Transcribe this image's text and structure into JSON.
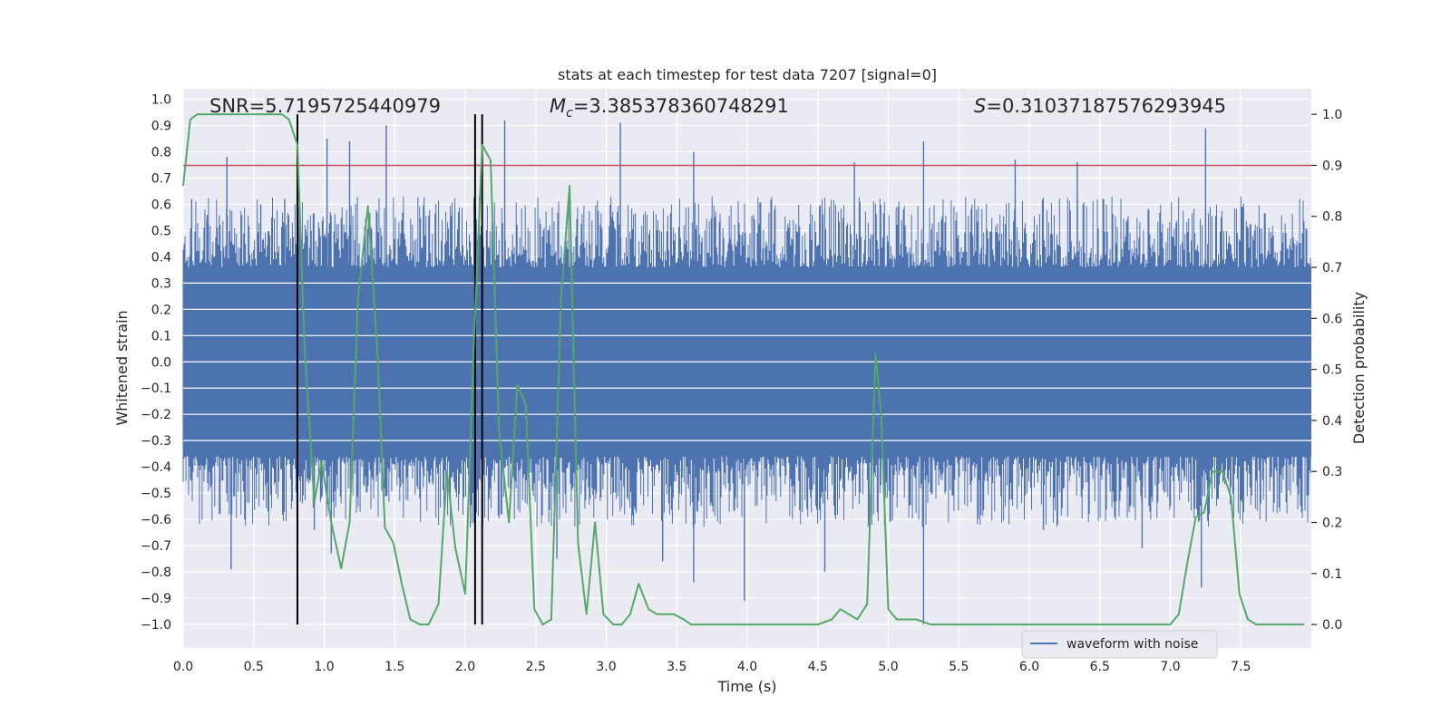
{
  "chart_data": {
    "type": "line",
    "title": "stats at each timestep for test data 7207 [signal=0]",
    "xlabel": "Time (s)",
    "ylabel": "Whitened strain",
    "y2label": "Detection probability",
    "xlim": [
      0.0,
      8.0
    ],
    "ylim": [
      -1.09,
      1.04
    ],
    "y2lim": [
      -0.046,
      1.05
    ],
    "x_ticks": [
      "0.0",
      "0.5",
      "1.0",
      "1.5",
      "2.0",
      "2.5",
      "3.0",
      "3.5",
      "4.0",
      "4.5",
      "5.0",
      "5.5",
      "6.0",
      "6.5",
      "7.0",
      "7.5"
    ],
    "y_ticks": [
      "1.0",
      "0.9",
      "0.8",
      "0.7",
      "0.6",
      "0.5",
      "0.4",
      "0.3",
      "0.2",
      "0.1",
      "0.0",
      "−0.1",
      "−0.2",
      "−0.3",
      "−0.4",
      "−0.5",
      "−0.6",
      "−0.7",
      "−0.8",
      "−0.9",
      "−1.0"
    ],
    "y2_ticks": [
      "1.0",
      "0.9",
      "0.8",
      "0.7",
      "0.6",
      "0.5",
      "0.4",
      "0.3",
      "0.2",
      "0.1",
      "0.0"
    ],
    "grid": true,
    "legend_position": "lower-right",
    "annotations": {
      "snr": "SNR=5.7195725440979",
      "mc_prefix": "M",
      "mc_sub": "c",
      "mc_value": "=3.385378360748291",
      "s_prefix": "S",
      "s_value": "=0.31037187576293945"
    },
    "threshold": {
      "axis": "y2",
      "value": 0.9,
      "color": "#c44e52"
    },
    "vertical_markers": {
      "x": [
        0.81,
        2.07,
        2.12
      ],
      "color": "#000000"
    },
    "series": [
      {
        "name": "waveform with noise",
        "axis": "y",
        "color": "#4c72b0",
        "amplitude_envelope": {
          "core_band": [
            -0.36,
            0.36
          ],
          "typical_peak": 0.55,
          "max_peak": 0.92,
          "min_trough": -1.0
        },
        "spikes": [
          [
            0.06,
            0.62
          ],
          [
            0.17,
            0.56
          ],
          [
            0.31,
            0.78
          ],
          [
            0.55,
            0.6
          ],
          [
            0.72,
            0.62
          ],
          [
            1.02,
            0.85
          ],
          [
            1.18,
            0.84
          ],
          [
            1.44,
            0.9
          ],
          [
            2.28,
            0.92
          ],
          [
            3.1,
            0.91
          ],
          [
            3.62,
            0.8
          ],
          [
            4.76,
            0.76
          ],
          [
            5.25,
            0.84
          ],
          [
            5.9,
            0.77
          ],
          [
            6.34,
            0.76
          ],
          [
            7.25,
            0.89
          ],
          [
            0.34,
            -0.79
          ],
          [
            1.05,
            -0.73
          ],
          [
            3.4,
            -0.76
          ],
          [
            3.62,
            -0.84
          ],
          [
            3.98,
            -0.91
          ],
          [
            4.55,
            -0.8
          ],
          [
            5.25,
            -1.0
          ],
          [
            7.22,
            -0.86
          ],
          [
            0.93,
            -0.64
          ],
          [
            2.65,
            -0.75
          ],
          [
            6.1,
            -0.64
          ],
          [
            6.8,
            -0.71
          ]
        ]
      },
      {
        "name": "detection probability",
        "axis": "y2",
        "color": "#55a868",
        "x": [
          0.0,
          0.05,
          0.1,
          0.2,
          0.3,
          0.4,
          0.5,
          0.6,
          0.7,
          0.75,
          0.81,
          0.86,
          0.93,
          0.98,
          1.05,
          1.12,
          1.18,
          1.24,
          1.31,
          1.38,
          1.43,
          1.49,
          1.55,
          1.61,
          1.68,
          1.74,
          1.81,
          1.87,
          1.93,
          2.0,
          2.06,
          2.12,
          2.18,
          2.24,
          2.31,
          2.37,
          2.43,
          2.49,
          2.55,
          2.61,
          2.68,
          2.74,
          2.8,
          2.86,
          2.92,
          2.98,
          3.05,
          3.11,
          3.17,
          3.23,
          3.3,
          3.36,
          3.42,
          3.48,
          3.55,
          3.6,
          3.7,
          3.8,
          3.9,
          4.0,
          4.1,
          4.2,
          4.3,
          4.4,
          4.5,
          4.6,
          4.66,
          4.72,
          4.78,
          4.85,
          4.91,
          4.95,
          5.0,
          5.06,
          5.12,
          5.2,
          5.3,
          5.4,
          5.5,
          5.6,
          5.7,
          5.8,
          5.9,
          6.0,
          6.2,
          6.4,
          6.6,
          6.8,
          7.0,
          7.06,
          7.12,
          7.18,
          7.24,
          7.3,
          7.37,
          7.43,
          7.49,
          7.55,
          7.61,
          7.7,
          7.8,
          7.95
        ],
        "y": [
          0.86,
          0.99,
          1.0,
          1.0,
          1.0,
          1.0,
          1.0,
          1.0,
          1.0,
          0.99,
          0.94,
          0.55,
          0.24,
          0.32,
          0.2,
          0.11,
          0.2,
          0.64,
          0.82,
          0.52,
          0.19,
          0.16,
          0.08,
          0.01,
          0.0,
          0.0,
          0.04,
          0.3,
          0.15,
          0.06,
          0.54,
          0.94,
          0.91,
          0.38,
          0.2,
          0.47,
          0.43,
          0.03,
          0.0,
          0.01,
          0.64,
          0.86,
          0.16,
          0.02,
          0.2,
          0.02,
          0.0,
          0.0,
          0.02,
          0.08,
          0.03,
          0.02,
          0.02,
          0.02,
          0.01,
          0.0,
          0.0,
          0.0,
          0.0,
          0.0,
          0.0,
          0.0,
          0.0,
          0.0,
          0.0,
          0.01,
          0.03,
          0.02,
          0.01,
          0.04,
          0.53,
          0.41,
          0.03,
          0.01,
          0.01,
          0.01,
          0.0,
          0.0,
          0.0,
          0.0,
          0.0,
          0.0,
          0.0,
          0.0,
          0.0,
          0.0,
          0.0,
          0.0,
          0.0,
          0.02,
          0.12,
          0.21,
          0.22,
          0.3,
          0.3,
          0.25,
          0.06,
          0.01,
          0.0,
          0.0,
          0.0,
          0.0
        ]
      }
    ]
  }
}
